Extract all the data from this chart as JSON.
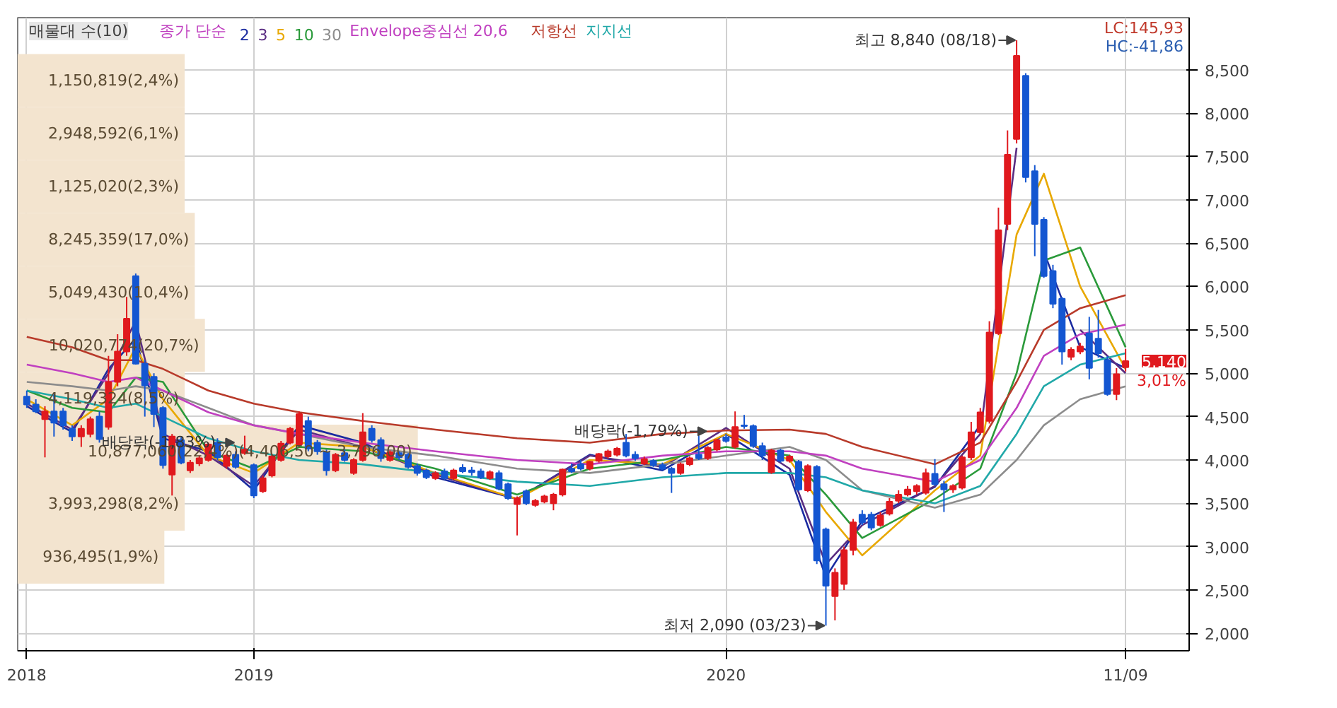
{
  "chart_data": {
    "type": "candlestick",
    "x": [
      "2018-07-16",
      "2018-07-23",
      "2018-07-30",
      "2018-08-06",
      "2018-08-13",
      "2018-08-20",
      "2018-08-27",
      "2018-09-03",
      "2018-09-10",
      "2018-09-17",
      "2018-09-24",
      "2018-10-01",
      "2018-10-08",
      "2018-10-15",
      "2018-10-22",
      "2018-10-29",
      "2018-11-05",
      "2018-11-12",
      "2018-11-19",
      "2018-11-26",
      "2018-12-03",
      "2018-12-10",
      "2018-12-17",
      "2018-12-24",
      "2018-12-31",
      "2019-01-07",
      "2019-01-14",
      "2019-01-21",
      "2019-01-28",
      "2019-02-04",
      "2019-02-11",
      "2019-02-18",
      "2019-02-25",
      "2019-03-04",
      "2019-03-11",
      "2019-03-18",
      "2019-03-25",
      "2019-04-01",
      "2019-04-08",
      "2019-04-15",
      "2019-04-22",
      "2019-04-29",
      "2019-05-06",
      "2019-05-13",
      "2019-05-20",
      "2019-05-27",
      "2019-06-03",
      "2019-06-10",
      "2019-06-17",
      "2019-06-24",
      "2019-07-01",
      "2019-07-08",
      "2019-07-15",
      "2019-07-22",
      "2019-07-29",
      "2019-08-05",
      "2019-08-12",
      "2019-08-19",
      "2019-08-26",
      "2019-09-02",
      "2019-09-09",
      "2019-09-16",
      "2019-09-23",
      "2019-09-30",
      "2019-10-07",
      "2019-10-14",
      "2019-10-21",
      "2019-10-28",
      "2019-11-04",
      "2019-11-11",
      "2019-11-18",
      "2019-11-25",
      "2019-12-02",
      "2019-12-09",
      "2019-12-16",
      "2019-12-23",
      "2019-12-30",
      "2020-01-06",
      "2020-01-13",
      "2020-01-20",
      "2020-01-27",
      "2020-02-03",
      "2020-02-10",
      "2020-02-17",
      "2020-02-24",
      "2020-03-02",
      "2020-03-09",
      "2020-03-16",
      "2020-03-23",
      "2020-03-30",
      "2020-04-06",
      "2020-04-13",
      "2020-04-20",
      "2020-04-27",
      "2020-05-04",
      "2020-05-11",
      "2020-05-18",
      "2020-05-25",
      "2020-06-01",
      "2020-06-08",
      "2020-06-15",
      "2020-06-22",
      "2020-06-29",
      "2020-07-06",
      "2020-07-13",
      "2020-07-20",
      "2020-07-27",
      "2020-08-03",
      "2020-08-10",
      "2020-08-17",
      "2020-08-24",
      "2020-08-31",
      "2020-09-07",
      "2020-09-14",
      "2020-09-21",
      "2020-09-28",
      "2020-10-05",
      "2020-10-12",
      "2020-10-19",
      "2020-10-26",
      "2020-11-02",
      "2020-11-09"
    ],
    "ohlc": [
      [
        4730,
        4800,
        4600,
        4640
      ],
      [
        4640,
        4700,
        4540,
        4560
      ],
      [
        4470,
        4620,
        4030,
        4560
      ],
      [
        4560,
        4760,
        4270,
        4430
      ],
      [
        4560,
        4600,
        4350,
        4400
      ],
      [
        4360,
        4400,
        4220,
        4270
      ],
      [
        4270,
        4400,
        4150,
        4360
      ],
      [
        4300,
        4500,
        4260,
        4470
      ],
      [
        4500,
        4560,
        4200,
        4240
      ],
      [
        4380,
        5200,
        4350,
        4900
      ],
      [
        4900,
        5450,
        4850,
        5250
      ],
      [
        5250,
        5880,
        5200,
        5630
      ],
      [
        6120,
        6150,
        5100,
        5110
      ],
      [
        5110,
        5150,
        4500,
        4860
      ],
      [
        4960,
        5000,
        4380,
        4530
      ],
      [
        4600,
        4620,
        3900,
        3940
      ],
      [
        3830,
        4300,
        3590,
        4270
      ],
      [
        4230,
        4260,
        3950,
        3970
      ],
      [
        3880,
        4000,
        3850,
        3970
      ],
      [
        3960,
        4050,
        3930,
        4020
      ],
      [
        4000,
        4200,
        3980,
        4180
      ],
      [
        4200,
        4250,
        4000,
        4030
      ],
      [
        3930,
        4070,
        3900,
        4050
      ],
      [
        4060,
        4100,
        3900,
        3920
      ],
      [
        4080,
        4280,
        4060,
        4120
      ],
      [
        3940,
        3960,
        3560,
        3590
      ],
      [
        3640,
        3820,
        3620,
        3790
      ],
      [
        3820,
        4060,
        3800,
        4040
      ],
      [
        4000,
        4220,
        3980,
        4190
      ],
      [
        4200,
        4380,
        4180,
        4360
      ],
      [
        4180,
        4560,
        4150,
        4530
      ],
      [
        4450,
        4500,
        4100,
        4130
      ],
      [
        4200,
        4230,
        4060,
        4100
      ],
      [
        4090,
        4120,
        3820,
        3880
      ],
      [
        3880,
        4080,
        3860,
        4060
      ],
      [
        4080,
        4120,
        3980,
        4000
      ],
      [
        3850,
        4020,
        3830,
        4000
      ],
      [
        4000,
        4540,
        3980,
        4320
      ],
      [
        4360,
        4400,
        4200,
        4230
      ],
      [
        4230,
        4260,
        3980,
        4020
      ],
      [
        4000,
        4110,
        3980,
        4090
      ],
      [
        4080,
        4100,
        4000,
        4030
      ],
      [
        4060,
        4080,
        3900,
        3920
      ],
      [
        3930,
        3960,
        3820,
        3850
      ],
      [
        3880,
        3900,
        3780,
        3800
      ],
      [
        3790,
        3870,
        3770,
        3850
      ],
      [
        3870,
        3900,
        3770,
        3790
      ],
      [
        3790,
        3900,
        3770,
        3880
      ],
      [
        3910,
        3950,
        3850,
        3870
      ],
      [
        3880,
        3920,
        3820,
        3860
      ],
      [
        3870,
        3900,
        3780,
        3800
      ],
      [
        3790,
        3880,
        3770,
        3860
      ],
      [
        3850,
        3880,
        3650,
        3670
      ],
      [
        3720,
        3740,
        3540,
        3560
      ],
      [
        3490,
        3580,
        3130,
        3560
      ],
      [
        3640,
        3660,
        3480,
        3500
      ],
      [
        3480,
        3550,
        3460,
        3530
      ],
      [
        3520,
        3600,
        3500,
        3580
      ],
      [
        3500,
        3620,
        3420,
        3600
      ],
      [
        3600,
        3900,
        3580,
        3890
      ],
      [
        3900,
        3960,
        3850,
        3870
      ],
      [
        3950,
        4000,
        3880,
        3900
      ],
      [
        3900,
        3990,
        3880,
        3980
      ],
      [
        3990,
        4080,
        3970,
        4070
      ],
      [
        4040,
        4120,
        4020,
        4100
      ],
      [
        4060,
        4150,
        4040,
        4130
      ],
      [
        4200,
        4300,
        4030,
        4050
      ],
      [
        4060,
        4100,
        3990,
        4020
      ],
      [
        3960,
        4040,
        3940,
        4010
      ],
      [
        3990,
        4010,
        3920,
        3940
      ],
      [
        3940,
        3970,
        3880,
        3900
      ],
      [
        3900,
        3920,
        3620,
        3850
      ],
      [
        3850,
        3970,
        3830,
        3950
      ],
      [
        3950,
        4040,
        3930,
        4020
      ],
      [
        4060,
        4280,
        4000,
        4020
      ],
      [
        4020,
        4160,
        4000,
        4140
      ],
      [
        4120,
        4240,
        4100,
        4230
      ],
      [
        4260,
        4300,
        4200,
        4220
      ],
      [
        4150,
        4560,
        4130,
        4380
      ],
      [
        4400,
        4520,
        4360,
        4390
      ],
      [
        4390,
        4410,
        4140,
        4160
      ],
      [
        4160,
        4200,
        4000,
        4050
      ],
      [
        3860,
        4130,
        3840,
        4110
      ],
      [
        4110,
        4130,
        3970,
        3990
      ],
      [
        3990,
        4060,
        3970,
        4040
      ],
      [
        3980,
        4000,
        3640,
        3660
      ],
      [
        3650,
        3950,
        3630,
        3930
      ],
      [
        3920,
        3940,
        2800,
        2840
      ],
      [
        3200,
        3220,
        2090,
        2550
      ],
      [
        2430,
        2750,
        2150,
        2700
      ],
      [
        2570,
        3000,
        2500,
        2960
      ],
      [
        2960,
        3320,
        2900,
        3280
      ],
      [
        3370,
        3420,
        3250,
        3280
      ],
      [
        3370,
        3400,
        3190,
        3220
      ],
      [
        3250,
        3400,
        3230,
        3360
      ],
      [
        3380,
        3560,
        3360,
        3520
      ],
      [
        3530,
        3650,
        3500,
        3600
      ],
      [
        3600,
        3700,
        3580,
        3660
      ],
      [
        3640,
        3720,
        3600,
        3700
      ],
      [
        3620,
        3900,
        3600,
        3850
      ],
      [
        3840,
        4010,
        3700,
        3720
      ],
      [
        3720,
        3760,
        3400,
        3660
      ],
      [
        3660,
        3720,
        3620,
        3700
      ],
      [
        3680,
        4050,
        3660,
        4030
      ],
      [
        4030,
        4440,
        4000,
        4320
      ],
      [
        4320,
        4600,
        4300,
        4550
      ],
      [
        4450,
        5600,
        4420,
        5470
      ],
      [
        5460,
        6910,
        5440,
        6650
      ],
      [
        6720,
        7800,
        6650,
        7520
      ],
      [
        7700,
        8840,
        7650,
        8660
      ],
      [
        8430,
        8460,
        7200,
        7260
      ],
      [
        7330,
        7400,
        6350,
        6720
      ],
      [
        6770,
        6800,
        6100,
        6120
      ],
      [
        6180,
        6250,
        5750,
        5800
      ],
      [
        5860,
        5880,
        5100,
        5250
      ],
      [
        5190,
        5300,
        5150,
        5270
      ],
      [
        5250,
        5350,
        5220,
        5310
      ],
      [
        5460,
        5650,
        4930,
        5060
      ],
      [
        5400,
        5730,
        5180,
        5230
      ],
      [
        5150,
        5200,
        4740,
        4760
      ],
      [
        4760,
        5060,
        4690,
        4990
      ],
      [
        5070,
        5280,
        5020,
        5140
      ]
    ],
    "legend_title": "종가 단순",
    "series": [
      {
        "name": "2",
        "type": "line",
        "color": "#1a2aa0",
        "x": [
          "2018-07-16",
          "2018-08-20",
          "2018-09-17",
          "2018-10-08",
          "2018-10-29",
          "2018-12-03",
          "2019-01-07",
          "2019-02-11",
          "2019-04-01",
          "2019-05-27",
          "2019-07-29",
          "2019-09-23",
          "2019-11-18",
          "2020-01-06",
          "2020-02-24",
          "2020-03-23",
          "2020-04-20",
          "2020-06-15",
          "2020-07-20",
          "2020-08-17",
          "2020-09-07",
          "2020-10-05",
          "2020-11-09"
        ],
        "values": [
          4620,
          4320,
          5050,
          5400,
          4250,
          4100,
          3650,
          4400,
          4200,
          3800,
          3550,
          4060,
          3880,
          4300,
          3830,
          2650,
          3300,
          3690,
          4400,
          null,
          6400,
          5300,
          5060
        ]
      },
      {
        "name": "3",
        "type": "line",
        "color": "#5a2d82",
        "x": [
          "2018-07-16",
          "2018-08-20",
          "2018-09-17",
          "2018-10-08",
          "2018-10-29",
          "2018-12-03",
          "2019-01-07",
          "2019-02-11",
          "2019-04-01",
          "2019-05-27",
          "2019-07-29",
          "2019-09-23",
          "2019-11-18",
          "2020-01-06",
          "2020-02-24",
          "2020-03-23",
          "2020-04-20",
          "2020-06-15",
          "2020-07-20",
          "2020-08-17",
          "2020-09-07",
          "2020-10-05",
          "2020-11-09"
        ],
        "values": [
          4650,
          4350,
          5000,
          5600,
          4300,
          4050,
          3700,
          4350,
          4150,
          3830,
          3550,
          4050,
          3920,
          4370,
          3900,
          2800,
          3250,
          3700,
          4300,
          7600,
          null,
          5500,
          5000
        ]
      },
      {
        "name": "5",
        "type": "line",
        "color": "#e8a800",
        "x": [
          "2018-07-16",
          "2018-08-20",
          "2018-09-17",
          "2018-10-08",
          "2018-10-29",
          "2018-12-03",
          "2019-01-07",
          "2019-02-11",
          "2019-04-01",
          "2019-05-27",
          "2019-07-29",
          "2019-09-23",
          "2019-11-18",
          "2020-01-06",
          "2020-02-24",
          "2020-03-23",
          "2020-04-20",
          "2020-06-15",
          "2020-07-20",
          "2020-08-17",
          "2020-09-07",
          "2020-10-05",
          "2020-11-09"
        ],
        "values": [
          4700,
          4400,
          4700,
          5300,
          4700,
          4050,
          3850,
          4200,
          4150,
          3850,
          3550,
          4000,
          3950,
          4300,
          4000,
          3400,
          2900,
          3650,
          4050,
          6600,
          7300,
          6000,
          5050
        ]
      },
      {
        "name": "10",
        "type": "line",
        "color": "#2a9a3a",
        "x": [
          "2018-07-16",
          "2018-08-20",
          "2018-09-17",
          "2018-10-08",
          "2018-10-29",
          "2018-12-03",
          "2019-01-07",
          "2019-02-11",
          "2019-04-01",
          "2019-05-27",
          "2019-07-29",
          "2019-09-23",
          "2019-11-18",
          "2020-01-06",
          "2020-02-24",
          "2020-03-23",
          "2020-04-20",
          "2020-06-15",
          "2020-07-20",
          "2020-08-17",
          "2020-09-07",
          "2020-10-05",
          "2020-11-09"
        ],
        "values": [
          4800,
          4600,
          4550,
          4950,
          4900,
          4100,
          3900,
          4150,
          4100,
          3900,
          3600,
          3900,
          4000,
          4150,
          4050,
          3600,
          3100,
          3550,
          3900,
          5000,
          6300,
          6450,
          5300
        ]
      },
      {
        "name": "30",
        "type": "line",
        "color": "#8c8c8c",
        "x": [
          "2018-07-16",
          "2018-08-20",
          "2018-09-17",
          "2018-10-08",
          "2018-10-29",
          "2018-12-03",
          "2019-01-07",
          "2019-02-11",
          "2019-04-01",
          "2019-05-27",
          "2019-07-29",
          "2019-09-23",
          "2019-11-18",
          "2020-01-06",
          "2020-02-24",
          "2020-03-23",
          "2020-04-20",
          "2020-06-15",
          "2020-07-20",
          "2020-08-17",
          "2020-09-07",
          "2020-10-05",
          "2020-11-09"
        ],
        "values": [
          4900,
          4850,
          4800,
          4850,
          4800,
          4600,
          4400,
          4300,
          4150,
          4050,
          3900,
          3850,
          3950,
          4050,
          4150,
          4000,
          3650,
          3450,
          3600,
          4000,
          4400,
          4700,
          4850
        ]
      },
      {
        "name": "Envelope중심선 20,6",
        "type": "line",
        "color": "#c040c0",
        "x": [
          "2018-07-16",
          "2018-08-20",
          "2018-09-17",
          "2018-10-08",
          "2018-10-29",
          "2018-12-03",
          "2019-01-07",
          "2019-02-11",
          "2019-04-01",
          "2019-05-27",
          "2019-07-29",
          "2019-09-23",
          "2019-11-18",
          "2020-01-06",
          "2020-02-24",
          "2020-03-23",
          "2020-04-20",
          "2020-06-15",
          "2020-07-20",
          "2020-08-17",
          "2020-09-07",
          "2020-10-05",
          "2020-11-09"
        ],
        "values": [
          5100,
          5000,
          4900,
          4950,
          4800,
          4550,
          4400,
          4300,
          4200,
          4100,
          4000,
          3950,
          4050,
          4100,
          4100,
          4050,
          3900,
          3750,
          4000,
          4600,
          5200,
          5450,
          5560
        ]
      },
      {
        "name": "저항선",
        "type": "line",
        "color": "#b83a2a",
        "x": [
          "2018-07-16",
          "2018-08-20",
          "2018-09-17",
          "2018-10-08",
          "2018-10-29",
          "2018-12-03",
          "2019-01-07",
          "2019-02-11",
          "2019-04-01",
          "2019-05-27",
          "2019-07-29",
          "2019-09-23",
          "2019-11-18",
          "2020-01-06",
          "2020-02-24",
          "2020-03-23",
          "2020-04-20",
          "2020-06-15",
          "2020-07-20",
          "2020-08-17",
          "2020-09-07",
          "2020-10-05",
          "2020-11-09"
        ],
        "values": [
          5420,
          5300,
          5150,
          5150,
          5050,
          4800,
          4650,
          4550,
          4450,
          4350,
          4250,
          4200,
          4300,
          4340,
          4350,
          4300,
          4150,
          3950,
          4200,
          4900,
          5500,
          5750,
          5900
        ]
      },
      {
        "name": "지지선",
        "type": "line",
        "color": "#20a8a8",
        "x": [
          "2018-07-16",
          "2018-08-20",
          "2018-09-17",
          "2018-10-08",
          "2018-10-29",
          "2018-12-03",
          "2019-01-07",
          "2019-02-11",
          "2019-04-01",
          "2019-05-27",
          "2019-07-29",
          "2019-09-23",
          "2019-11-18",
          "2020-01-06",
          "2020-02-24",
          "2020-03-23",
          "2020-04-20",
          "2020-06-15",
          "2020-07-20",
          "2020-08-17",
          "2020-09-07",
          "2020-10-05",
          "2020-11-09"
        ],
        "values": [
          4800,
          4700,
          4600,
          4650,
          4500,
          4250,
          4100,
          4000,
          3950,
          3850,
          3750,
          3700,
          3800,
          3850,
          3850,
          3800,
          3650,
          3500,
          3700,
          4300,
          4850,
          5100,
          5230
        ]
      }
    ],
    "xlim": [
      "2018-07-09",
      "2020-12-28"
    ],
    "xticks": [
      {
        "value": "2018-07-16",
        "label": "2018"
      },
      {
        "value": "2019-01-07",
        "label": "2019"
      },
      {
        "value": "2020-01-06",
        "label": "2020"
      },
      {
        "value": "2020-11-09",
        "label": "11/09"
      }
    ],
    "ylim": [
      1800,
      9100
    ],
    "yticks": [
      {
        "value": 2000,
        "label": "2,000"
      },
      {
        "value": 2500,
        "label": "2,500"
      },
      {
        "value": 3000,
        "label": "3,000"
      },
      {
        "value": 3500,
        "label": "3,500"
      },
      {
        "value": 4000,
        "label": "4,000"
      },
      {
        "value": 4500,
        "label": "4,500"
      },
      {
        "value": 5000,
        "label": "5,000"
      },
      {
        "value": 5500,
        "label": "5,500"
      },
      {
        "value": 6000,
        "label": "6,000"
      },
      {
        "value": 6500,
        "label": "6,500"
      },
      {
        "value": 7000,
        "label": "7,000"
      },
      {
        "value": 7500,
        "label": "7,500"
      },
      {
        "value": 8000,
        "label": "8,000"
      },
      {
        "value": 8500,
        "label": "8,500"
      }
    ],
    "bands": [
      {
        "axis": "y",
        "from": 8069.5,
        "to": 8680,
        "label": "1,150,819(2,4%)",
        "color": "#f3e4cf"
      },
      {
        "axis": "y",
        "from": 7459,
        "to": 8069.5,
        "label": "2,948,592(6,1%)",
        "color": "#f3e4cf"
      },
      {
        "axis": "y",
        "from": 6848.5,
        "to": 7459,
        "label": "1,125,020(2,3%)",
        "color": "#f3e4cf"
      },
      {
        "axis": "y",
        "from": 6238,
        "to": 6848.5,
        "label": "8,245,359(17,0%)",
        "color": "#f3e4cf"
      },
      {
        "axis": "y",
        "from": 5627.5,
        "to": 6238,
        "label": "5,049,430(10,4%)",
        "color": "#f3e4cf"
      },
      {
        "axis": "y",
        "from": 5017,
        "to": 5627.5,
        "label": "10,020,774(20,7%)",
        "color": "#f3e4cf"
      },
      {
        "axis": "y",
        "from": 4406.5,
        "to": 5017,
        "label": "4,119,324(8,5%)",
        "color": "#f3e4cf"
      },
      {
        "axis": "y",
        "from": 3796,
        "to": 4406.5,
        "label": "10,877,060(22,4%)(4,406,50 ~ 3,796,00)",
        "color": "#f3e4cf"
      },
      {
        "axis": "y",
        "from": 3185.5,
        "to": 3796,
        "label": "3,993,298(8,2%)",
        "color": "#f3e4cf"
      },
      {
        "axis": "y",
        "from": 2575,
        "to": 3185.5,
        "label": "936,495(1,9%)",
        "color": "#f3e4cf"
      }
    ],
    "grid": true,
    "legend": "top left",
    "annotations": [
      {
        "text": "최고 8,840 (08/18)",
        "x": "2020-08-17",
        "y": 8840
      },
      {
        "text": "최저 2,090 (03/23)",
        "x": "2020-03-23",
        "y": 2090
      },
      {
        "text": "배당락(-1,83%)",
        "x": "2018-12-24",
        "y": 4200
      },
      {
        "text": "배당락(-1,79%)",
        "x": "2019-12-23",
        "y": 4330
      },
      "매물대 수(10)",
      "LC:145,93",
      "HC:-41,86",
      "5,140",
      "3,01%"
    ]
  }
}
